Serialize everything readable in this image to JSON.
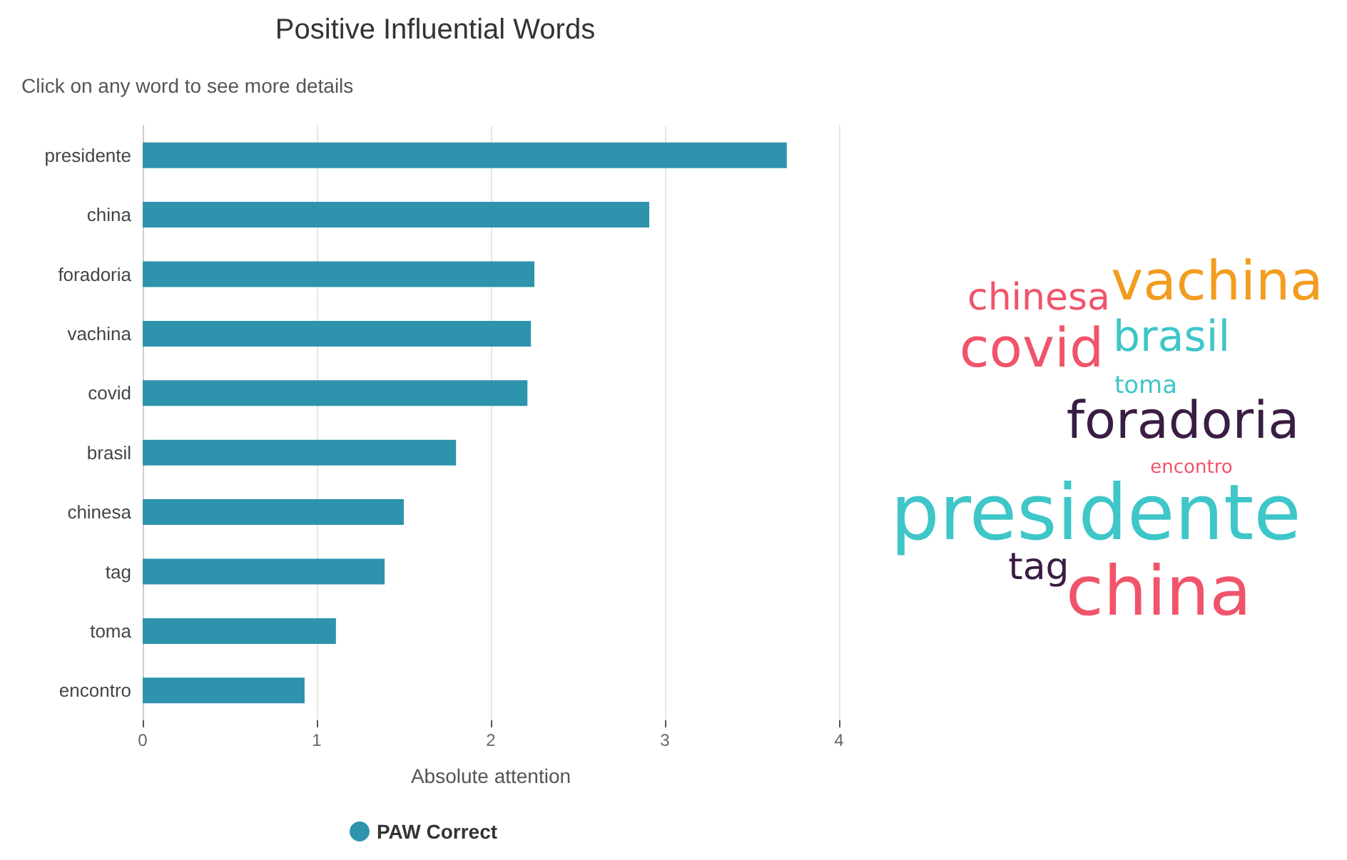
{
  "chart_data": [
    {
      "type": "bar",
      "orientation": "horizontal",
      "title": "Positive Influential Words",
      "subtitle": "Click on any word to see more details",
      "xlabel": "Absolute attention",
      "categories": [
        "presidente",
        "china",
        "foradoria",
        "vachina",
        "covid",
        "brasil",
        "chinesa",
        "tag",
        "toma",
        "encontro"
      ],
      "series": [
        {
          "name": "PAW Correct",
          "color": "#2e93ad",
          "values": [
            3.7,
            2.91,
            2.25,
            2.23,
            2.21,
            1.8,
            1.5,
            1.39,
            1.11,
            0.93
          ]
        }
      ],
      "xlim": [
        0,
        4
      ],
      "xticks": [
        0,
        1,
        2,
        3,
        4
      ],
      "grid": "x",
      "legend": "bottom"
    },
    {
      "type": "other",
      "annotations": [
        "vachina",
        "chinesa",
        "covid",
        "brasil",
        "toma",
        "foradoria",
        "encontro",
        "presidente",
        "tag",
        "china"
      ]
    }
  ]
}
